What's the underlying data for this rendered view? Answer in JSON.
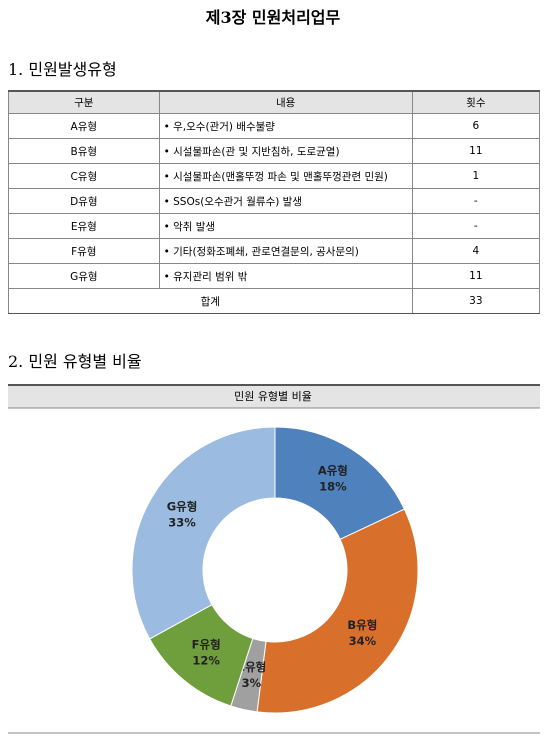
{
  "title": "제3장 민원처리업무",
  "section1": "1. 민원발생유형",
  "table": {
    "header": [
      "구분",
      "내용",
      "횟수"
    ],
    "rows": [
      [
        "A유형",
        "• 우,오수(관거) 배수불량",
        6
      ],
      [
        "B유형",
        "• 시설물파손(관 및 지반침하, 도로균열)",
        11
      ],
      [
        "C유형",
        "• 시설물파손(맨홀뚜껑 파손 및 맨홀뚜껑관련 민원)",
        1
      ],
      [
        "D유형",
        "• SSOs(오수관거 월류수) 발생",
        "-"
      ],
      [
        "E유형",
        "• 악취 발생",
        "-"
      ],
      [
        "F유형",
        "• 기타(정화조폐쇄, 관로연결문의, 공사문의)",
        4
      ],
      [
        "G유형",
        "• 유지관리 범위 밖",
        11
      ]
    ],
    "total": [
      "합계",
      33
    ]
  },
  "section2": "2. 민원 유형별 비율",
  "chart_data": {
    "type": "donut",
    "title": "민원 유형별 비율",
    "categories": [
      "A유형",
      "B유형",
      "C유형",
      "F유형",
      "G유형"
    ],
    "values": [
      18,
      34,
      3,
      12,
      33
    ],
    "value_labels": [
      "18%",
      "34%",
      "3%",
      "12%",
      "33%"
    ],
    "colors": [
      "#4f81bd",
      "#d8702c",
      "#a0a0a0",
      "#6f9f3c",
      "#9bbbe0"
    ]
  }
}
